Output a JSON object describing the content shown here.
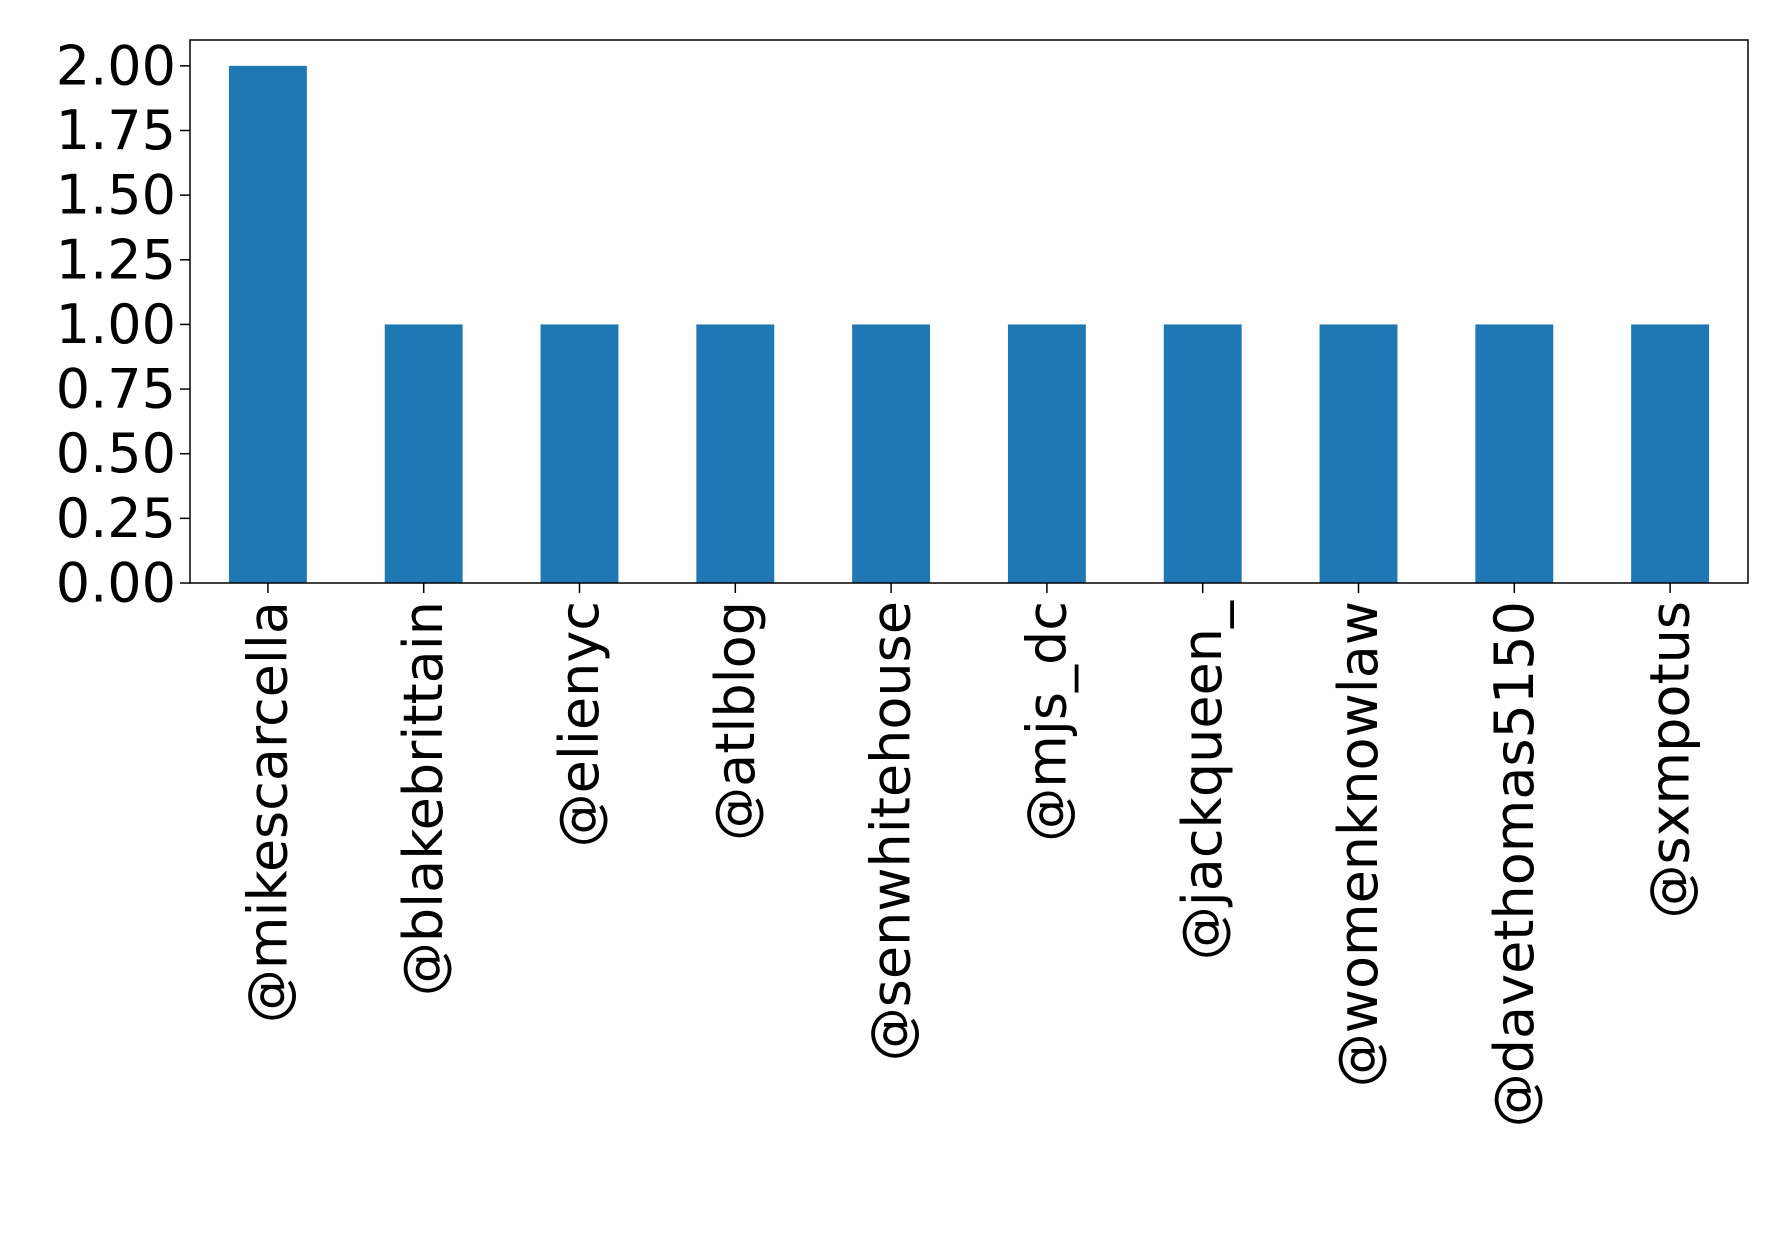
{
  "chart_data": {
    "type": "bar",
    "categories": [
      "@mikescarcella",
      "@blakebrittain",
      "@elienyc",
      "@atlblog",
      "@senwhitehouse",
      "@mjs_dc",
      "@jackqueen_",
      "@womenknowlaw",
      "@davethomas5150",
      "@sxmpotus"
    ],
    "values": [
      2,
      1,
      1,
      1,
      1,
      1,
      1,
      1,
      1,
      1
    ],
    "title": "",
    "xlabel": "",
    "ylabel": "",
    "ylim": [
      0,
      2.1
    ],
    "yticks": [
      "0.00",
      "0.25",
      "0.50",
      "0.75",
      "1.00",
      "1.25",
      "1.50",
      "1.75",
      "2.00"
    ],
    "grid": false,
    "bar_color": "#1f77b4"
  }
}
